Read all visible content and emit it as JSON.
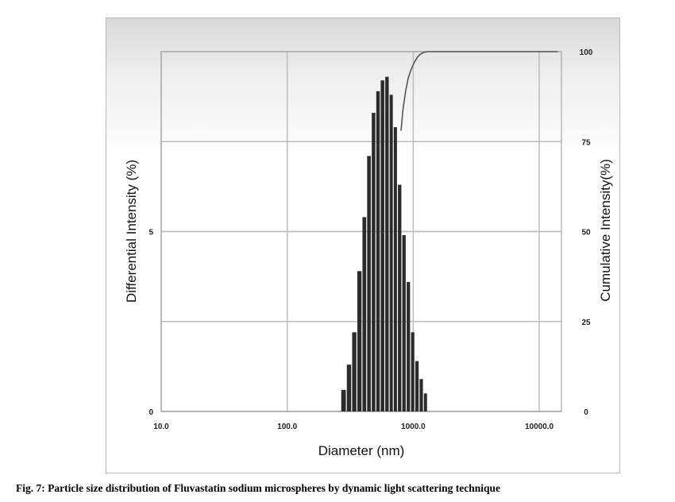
{
  "caption": "Fig. 7: Particle size distribution of Fluvastatin sodium microspheres by dynamic light scattering technique",
  "chart_data": {
    "type": "bar",
    "xlabel": "Diameter (nm)",
    "ylabel_left": "Differential Intensity (%)",
    "ylabel_right": "Cumulative Intensity(%)",
    "x_scale": "log",
    "xlim": [
      10,
      15000
    ],
    "x_ticks": [
      10,
      100,
      1000,
      10000
    ],
    "x_tick_labels": [
      "10.0",
      "100.0",
      "1000.0",
      "10000.0"
    ],
    "ylim_left": [
      0,
      10
    ],
    "y_ticks_left": [
      0,
      5
    ],
    "y_tick_labels_left": [
      "0",
      "5"
    ],
    "ylim_right": [
      0,
      100
    ],
    "y_ticks_right": [
      0,
      25,
      50,
      75,
      100
    ],
    "y_tick_labels_right": [
      "0",
      "25",
      "50",
      "75",
      "100"
    ],
    "grid": true,
    "differential": {
      "diameter_nm": [
        280,
        310,
        340,
        375,
        410,
        445,
        485,
        525,
        570,
        620,
        670,
        720,
        780,
        845,
        915,
        990,
        1070,
        1160,
        1250
      ],
      "intensity_pct": [
        0.6,
        1.3,
        2.2,
        3.9,
        5.4,
        7.1,
        8.3,
        8.9,
        9.2,
        9.3,
        8.8,
        7.9,
        6.3,
        4.9,
        3.6,
        2.2,
        1.4,
        0.9,
        0.5
      ]
    },
    "cumulative": {
      "diameter_nm": [
        800,
        830,
        870,
        910,
        960,
        1020,
        1080,
        1140,
        1210,
        1300,
        14000
      ],
      "intensity_pct": [
        78,
        84,
        89,
        92.5,
        95,
        97,
        98.5,
        99.3,
        99.8,
        100,
        100
      ]
    },
    "colors": {
      "bars": "#2b2b2b",
      "cumulative_line": "#555555",
      "grid": "#bdbdbd"
    }
  }
}
